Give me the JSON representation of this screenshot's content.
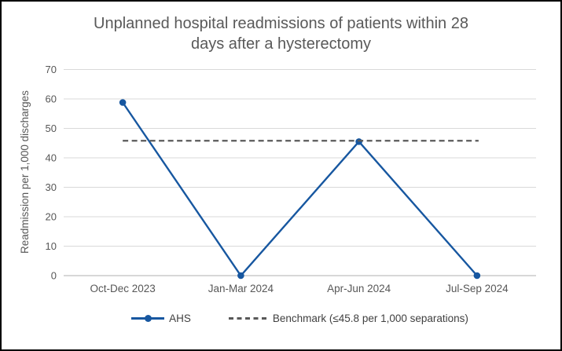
{
  "frame": {
    "background": "#FFFFFF",
    "border_color": "#000000"
  },
  "chart_data": {
    "type": "line",
    "title": "Unplanned hospital readmissions of patients within 28 days after a hysterectomy",
    "title_lines": [
      "Unplanned hospital readmissions of patients within 28",
      "days after a hysterectomy"
    ],
    "categories": [
      "Oct-Dec 2023",
      "Jan-Mar 2024",
      "Apr-Jun 2024",
      "Jul-Sep 2024"
    ],
    "series": [
      {
        "name": "AHS",
        "type": "line",
        "marker": "circle",
        "color": "#1757A0",
        "values": [
          58.8,
          0,
          45.5,
          0
        ]
      },
      {
        "name": "Benchmark (≤45.8 per 1,000 separations)",
        "type": "reference-line",
        "style": "dashed",
        "color": "#595959",
        "value": 45.8
      }
    ],
    "xlabel": "",
    "ylabel": "Readmission per 1,000 discharges",
    "ylim": [
      0,
      70
    ],
    "yticks": [
      0,
      10,
      20,
      30,
      40,
      50,
      60,
      70
    ],
    "grid": "horizontal",
    "gridline_color": "#D9D9D9",
    "axis_line_color": "#BFBFBF",
    "tick_text_color": "#575757",
    "title_color": "#595959",
    "legend_position": "bottom"
  }
}
